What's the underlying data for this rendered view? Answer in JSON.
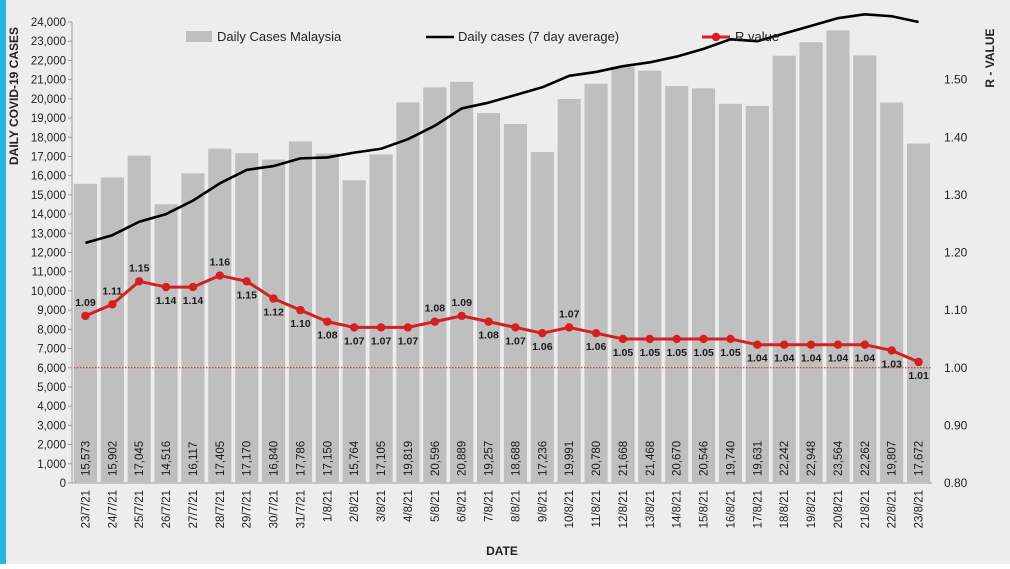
{
  "chart_data": {
    "type": "bar",
    "title": "",
    "xlabel": "DATE",
    "ylabel": "DAILY COVID-19 CASES",
    "y2label": "R - VALUE",
    "ylim": [
      0,
      24000
    ],
    "y2lim": [
      0.8,
      1.6
    ],
    "yticks": [
      "0",
      "1,000",
      "2,000",
      "3,000",
      "4,000",
      "5,000",
      "6,000",
      "7,000",
      "8,000",
      "9,000",
      "10,000",
      "11,000",
      "12,000",
      "13,000",
      "14,000",
      "15,000",
      "16,000",
      "17,000",
      "18,000",
      "19,000",
      "20,000",
      "21,000",
      "22,000",
      "23,000",
      "24,000"
    ],
    "y2ticks": [
      "0.80",
      "0.90",
      "1.00",
      "1.10",
      "1.20",
      "1.30",
      "1.40",
      "1.50"
    ],
    "categories": [
      "23/7/21",
      "24/7/21",
      "25/7/21",
      "26/7/21",
      "27/7/21",
      "28/7/21",
      "29/7/21",
      "30/7/21",
      "31/7/21",
      "1/8/21",
      "2/8/21",
      "3/8/21",
      "4/8/21",
      "5/8/21",
      "6/8/21",
      "7/8/21",
      "8/8/21",
      "9/8/21",
      "10/8/21",
      "11/8/21",
      "12/8/21",
      "13/8/21",
      "14/8/21",
      "15/8/21",
      "16/8/21",
      "17/8/21",
      "18/8/21",
      "19/8/21",
      "20/8/21",
      "21/8/21",
      "22/8/21",
      "23/8/21"
    ],
    "series": [
      {
        "name": "Daily Cases Malaysia",
        "type": "bar",
        "color": "#bfbfbf",
        "values": [
          15573,
          15902,
          17045,
          14516,
          16117,
          17405,
          17170,
          16840,
          17786,
          17150,
          15764,
          17105,
          19819,
          20596,
          20889,
          19257,
          18688,
          17236,
          19991,
          20780,
          21668,
          21468,
          20670,
          20546,
          19740,
          19631,
          22242,
          22948,
          23564,
          22262,
          19807,
          17672
        ],
        "labels": [
          "15,573",
          "15,902",
          "17,045",
          "14,516",
          "16,117",
          "17,405",
          "17,170",
          "16,840",
          "17,786",
          "17,150",
          "15,764",
          "17,105",
          "19,819",
          "20,596",
          "20,889",
          "19,257",
          "18,688",
          "17,236",
          "19,991",
          "20,780",
          "21,668",
          "21,468",
          "20,670",
          "20,546",
          "19,740",
          "19,631",
          "22,242",
          "22,948",
          "23,564",
          "22,262",
          "19,807",
          "17,672"
        ]
      },
      {
        "name": "Daily cases (7 day average)",
        "type": "line",
        "color": "#000000",
        "values": [
          12500,
          12900,
          13600,
          14000,
          14700,
          15600,
          16300,
          16500,
          16900,
          16950,
          17200,
          17400,
          17900,
          18600,
          19500,
          19800,
          20200,
          20600,
          21200,
          21400,
          21700,
          21900,
          22200,
          22600,
          23100,
          23000,
          23400,
          23800,
          24200,
          24400,
          24300,
          24000
        ]
      },
      {
        "name": "R value",
        "type": "line",
        "axis": "right",
        "color": "#d61f1f",
        "values": [
          1.09,
          1.11,
          1.15,
          1.14,
          1.14,
          1.16,
          1.15,
          1.12,
          1.1,
          1.08,
          1.07,
          1.07,
          1.07,
          1.08,
          1.09,
          1.08,
          1.07,
          1.06,
          1.07,
          1.06,
          1.05,
          1.05,
          1.05,
          1.05,
          1.05,
          1.04,
          1.04,
          1.04,
          1.04,
          1.04,
          1.03,
          1.01
        ],
        "labels": [
          "1.09",
          "1.11",
          "1.15",
          "1.14",
          "1.14",
          "1.16",
          "1.15",
          "1.12",
          "1.10",
          "1.08",
          "1.07",
          "1.07",
          "1.07",
          "1.08",
          "1.09",
          "1.08",
          "1.07",
          "1.06",
          "1.07",
          "1.06",
          "1.05",
          "1.05",
          "1.05",
          "1.05",
          "1.05",
          "1.04",
          "1.04",
          "1.04",
          "1.04",
          "1.04",
          "1.03",
          "1.01"
        ]
      }
    ],
    "reference_line": {
      "axis": "right",
      "value": 1.0,
      "color": "#d61f1f",
      "style": "dotted"
    },
    "grid": false,
    "legend": "top"
  }
}
